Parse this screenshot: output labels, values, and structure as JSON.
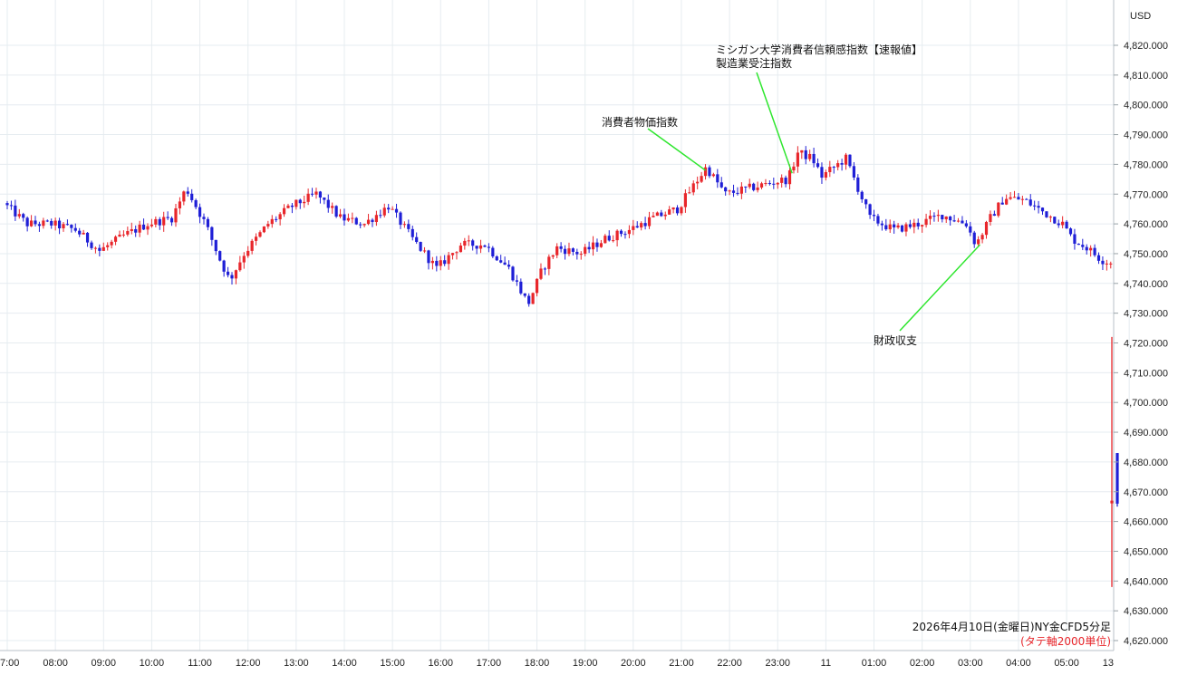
{
  "chart_data": {
    "type": "candlestick",
    "currency_label": "USD",
    "ylim": [
      4615,
      4830
    ],
    "y_ticks": [
      4620,
      4630,
      4640,
      4650,
      4660,
      4670,
      4680,
      4690,
      4700,
      4710,
      4720,
      4730,
      4740,
      4750,
      4760,
      4770,
      4780,
      4790,
      4800,
      4810,
      4820
    ],
    "y_tick_labels": [
      "4,620.000",
      "4,630.000",
      "4,640.000",
      "4,650.000",
      "4,660.000",
      "4,670.000",
      "4,680.000",
      "4,690.000",
      "4,700.000",
      "4,710.000",
      "4,720.000",
      "4,730.000",
      "4,740.000",
      "4,750.000",
      "4,760.000",
      "4,770.000",
      "4,780.000",
      "4,790.000",
      "4,800.000",
      "4,810.000",
      "4,820.000"
    ],
    "x_start_label": "07:00",
    "x_tick_labels": [
      "7:00",
      "08:00",
      "09:00",
      "10:00",
      "11:00",
      "12:00",
      "13:00",
      "14:00",
      "15:00",
      "16:00",
      "17:00",
      "18:00",
      "19:00",
      "20:00",
      "21:00",
      "22:00",
      "23:00",
      "11",
      "01:00",
      "02:00",
      "03:00",
      "04:00",
      "05:00",
      "13"
    ],
    "x_tick_hours": [
      0,
      1,
      2,
      3,
      4,
      5,
      6,
      7,
      8,
      9,
      10,
      11,
      12,
      13,
      14,
      15,
      16,
      17,
      18,
      19,
      20,
      21,
      22,
      23.3
    ],
    "grid": true,
    "colors": {
      "up": "#e8262b",
      "down": "#1f1fd6",
      "annotation_line": "#2ee62e",
      "grid": "#e6ecf0"
    },
    "close_path": [
      [
        0.0,
        4767
      ],
      [
        0.5,
        4760
      ],
      [
        1.0,
        4760
      ],
      [
        1.5,
        4758
      ],
      [
        2.0,
        4751
      ],
      [
        2.5,
        4756
      ],
      [
        3.0,
        4760
      ],
      [
        3.5,
        4762
      ],
      [
        3.8,
        4772
      ],
      [
        4.2,
        4760
      ],
      [
        4.5,
        4748
      ],
      [
        4.7,
        4741
      ],
      [
        5.0,
        4750
      ],
      [
        5.5,
        4760
      ],
      [
        6.0,
        4766
      ],
      [
        6.5,
        4770
      ],
      [
        7.0,
        4762
      ],
      [
        7.5,
        4760
      ],
      [
        8.0,
        4766
      ],
      [
        8.5,
        4755
      ],
      [
        9.0,
        4745
      ],
      [
        9.5,
        4753
      ],
      [
        10.0,
        4753
      ],
      [
        10.5,
        4745
      ],
      [
        10.9,
        4733
      ],
      [
        11.2,
        4745
      ],
      [
        11.5,
        4752
      ],
      [
        12.0,
        4750
      ],
      [
        12.5,
        4755
      ],
      [
        13.0,
        4758
      ],
      [
        13.5,
        4762
      ],
      [
        14.0,
        4765
      ],
      [
        14.3,
        4772
      ],
      [
        14.6,
        4779
      ],
      [
        15.0,
        4770
      ],
      [
        15.5,
        4772
      ],
      [
        16.0,
        4774
      ],
      [
        16.3,
        4775
      ],
      [
        16.5,
        4784
      ],
      [
        16.8,
        4782
      ],
      [
        17.0,
        4776
      ],
      [
        17.5,
        4782
      ],
      [
        18.0,
        4762
      ],
      [
        18.5,
        4758
      ],
      [
        19.0,
        4760
      ],
      [
        19.5,
        4763
      ],
      [
        20.0,
        4760
      ],
      [
        20.2,
        4753
      ],
      [
        20.5,
        4762
      ],
      [
        20.8,
        4769
      ],
      [
        21.2,
        4768
      ],
      [
        21.6,
        4764
      ],
      [
        22.0,
        4760
      ],
      [
        22.2,
        4755
      ],
      [
        22.5,
        4752
      ],
      [
        22.8,
        4748
      ],
      [
        23.0,
        4747
      ]
    ],
    "special_candles": [
      {
        "x": 23.3,
        "open": 4667,
        "high": 4722,
        "low": 4638,
        "close": 4667
      },
      {
        "x": 23.4,
        "open": 4683,
        "high": 4683,
        "low": 4665,
        "close": 4666
      }
    ],
    "annotations": [
      {
        "label": "消費者物価指数",
        "x": 14.5,
        "y": 4778
      },
      {
        "label1": "ミシガン大学消費者信頼感指数【速報値】",
        "label2": "製造業受注指数",
        "x": 16.3,
        "y": 4777
      },
      {
        "label": "財政収支",
        "x": 20.2,
        "y": 4753
      }
    ],
    "caption": "2026年4月10日(金曜日)NY金CFD5分足",
    "caption_note": "(タテ軸2000単位)"
  }
}
